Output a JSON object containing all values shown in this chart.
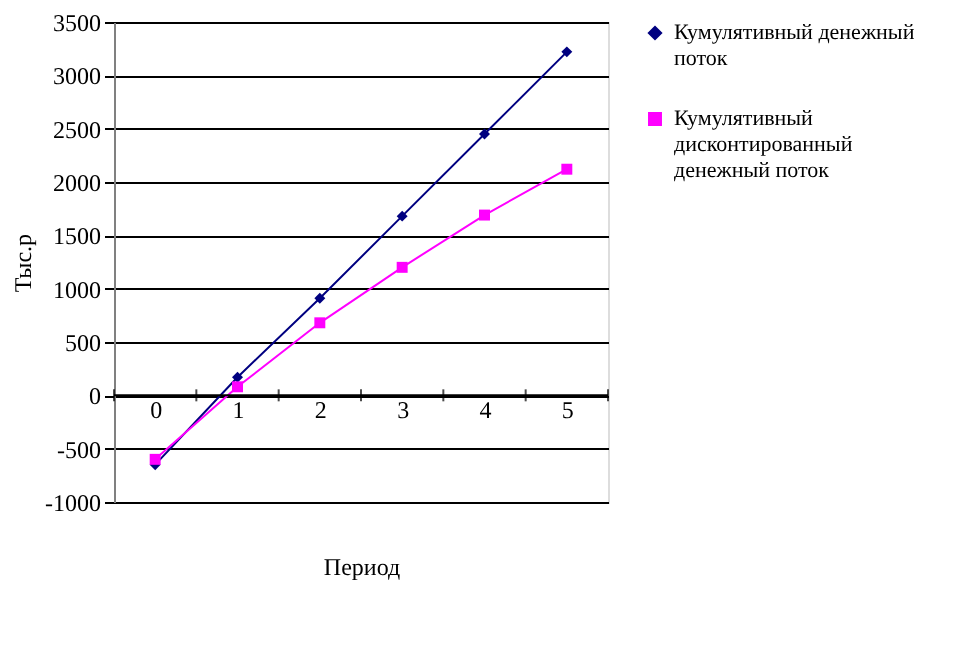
{
  "chart_data": {
    "type": "line",
    "xlabel": "Период",
    "ylabel": "Тыс.р",
    "categories": [
      "0",
      "1",
      "2",
      "3",
      "4",
      "5"
    ],
    "series": [
      {
        "name": "Кумулятивный денежный поток",
        "color": "#000080",
        "marker": "diamond",
        "values": [
          -650,
          170,
          910,
          1680,
          2450,
          3220
        ]
      },
      {
        "name": "Кумулятивный дисконтированный денежный поток",
        "color": "#ff00ff",
        "marker": "square",
        "values": [
          -600,
          80,
          680,
          1200,
          1690,
          2120
        ]
      }
    ],
    "ylim": [
      -1000,
      3500
    ],
    "yticks": [
      -1000,
      -500,
      0,
      500,
      1000,
      1500,
      2000,
      2500,
      3000,
      3500
    ],
    "grid": "y",
    "legend": "right",
    "line_style": "solid"
  }
}
